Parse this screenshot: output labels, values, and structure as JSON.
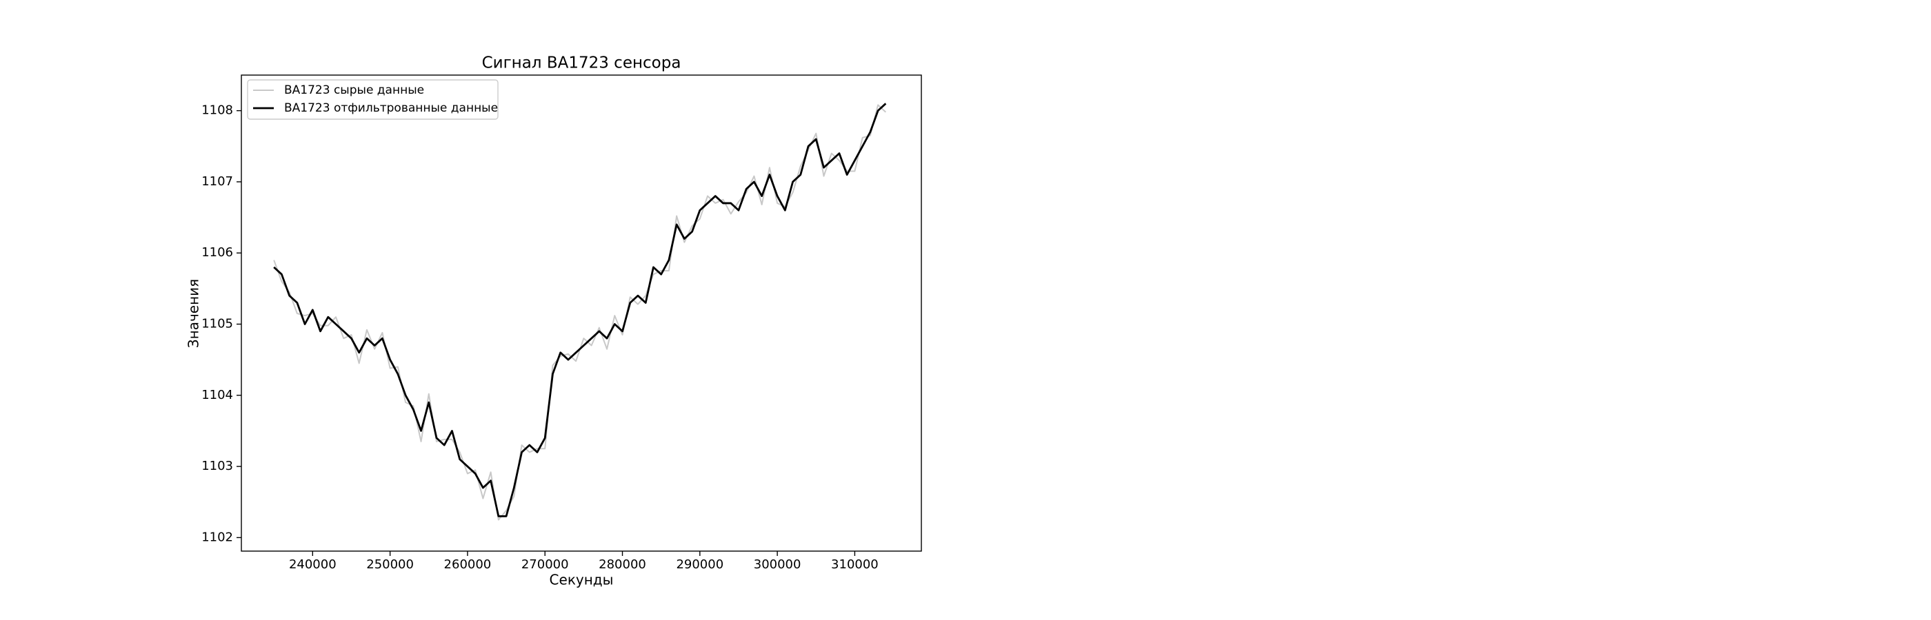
{
  "chart_data": {
    "type": "line",
    "title": "Сигнал BA1723 сенсора",
    "x_label": "Секунды",
    "y_label": "Значения",
    "x": [
      235000,
      236000,
      237000,
      238000,
      239000,
      240000,
      241000,
      242000,
      243000,
      244000,
      245000,
      246000,
      247000,
      248000,
      249000,
      250000,
      251000,
      252000,
      253000,
      254000,
      255000,
      256000,
      257000,
      258000,
      259000,
      260000,
      261000,
      262000,
      263000,
      264000,
      265000,
      266000,
      267000,
      268000,
      269000,
      270000,
      271000,
      272000,
      273000,
      274000,
      275000,
      276000,
      277000,
      278000,
      279000,
      280000,
      281000,
      282000,
      283000,
      284000,
      285000,
      286000,
      287000,
      288000,
      289000,
      290000,
      291000,
      292000,
      293000,
      294000,
      295000,
      296000,
      297000,
      298000,
      299000,
      300000,
      301000,
      302000,
      303000,
      304000,
      305000,
      306000,
      307000,
      308000,
      309000,
      310000,
      311000,
      312000,
      313000,
      314000
    ],
    "series": [
      {
        "name": "BA1723 сырые данные",
        "color": "#c8c8c8",
        "values": [
          1105.9,
          1105.6,
          1105.45,
          1105.15,
          1105.12,
          1105.15,
          1104.98,
          1104.98,
          1105.1,
          1104.8,
          1104.85,
          1104.45,
          1104.92,
          1104.65,
          1104.88,
          1104.38,
          1104.4,
          1103.9,
          1103.85,
          1103.35,
          1104.02,
          1103.35,
          1103.38,
          1103.38,
          1103.2,
          1102.9,
          1102.95,
          1102.55,
          1102.92,
          1102.25,
          1102.38,
          1102.58,
          1103.3,
          1103.2,
          1103.25,
          1103.25,
          1104.42,
          1104.55,
          1104.58,
          1104.48,
          1104.8,
          1104.7,
          1104.95,
          1104.65,
          1105.12,
          1104.85,
          1105.38,
          1105.28,
          1105.4,
          1105.7,
          1105.75,
          1105.75,
          1106.52,
          1106.15,
          1106.38,
          1106.48,
          1106.8,
          1106.7,
          1106.75,
          1106.55,
          1106.72,
          1106.85,
          1107.08,
          1106.68,
          1107.2,
          1106.7,
          1106.65,
          1106.85,
          1107.22,
          1107.45,
          1107.68,
          1107.08,
          1107.4,
          1107.3,
          1107.15,
          1107.15,
          1107.62,
          1107.65,
          1108.08,
          1107.98
        ]
      },
      {
        "name": "BA1723 отфильтрованные данные",
        "color": "#000000",
        "values": [
          1105.8,
          1105.7,
          1105.4,
          1105.3,
          1105.0,
          1105.2,
          1104.9,
          1105.1,
          1105.0,
          1104.9,
          1104.8,
          1104.6,
          1104.8,
          1104.7,
          1104.8,
          1104.5,
          1104.3,
          1104.0,
          1103.8,
          1103.5,
          1103.9,
          1103.4,
          1103.3,
          1103.5,
          1103.1,
          1103.0,
          1102.9,
          1102.7,
          1102.8,
          1102.3,
          1102.3,
          1102.7,
          1103.2,
          1103.3,
          1103.2,
          1103.4,
          1104.3,
          1104.6,
          1104.5,
          1104.6,
          1104.7,
          1104.8,
          1104.9,
          1104.8,
          1105.0,
          1104.9,
          1105.3,
          1105.4,
          1105.3,
          1105.8,
          1105.7,
          1105.9,
          1106.4,
          1106.2,
          1106.3,
          1106.6,
          1106.7,
          1106.8,
          1106.7,
          1106.7,
          1106.6,
          1106.9,
          1107.0,
          1106.8,
          1107.1,
          1106.8,
          1106.6,
          1107.0,
          1107.1,
          1107.5,
          1107.6,
          1107.2,
          1107.3,
          1107.4,
          1107.1,
          1107.3,
          1107.5,
          1107.7,
          1108.0,
          1108.1
        ]
      }
    ],
    "xlim": [
      230800,
      318600
    ],
    "ylim": [
      1101.81,
      1108.5
    ],
    "xticks": [
      240000,
      250000,
      260000,
      270000,
      280000,
      290000,
      300000,
      310000
    ],
    "yticks": [
      1102,
      1103,
      1104,
      1105,
      1106,
      1107,
      1108
    ],
    "legend": "upper left"
  }
}
